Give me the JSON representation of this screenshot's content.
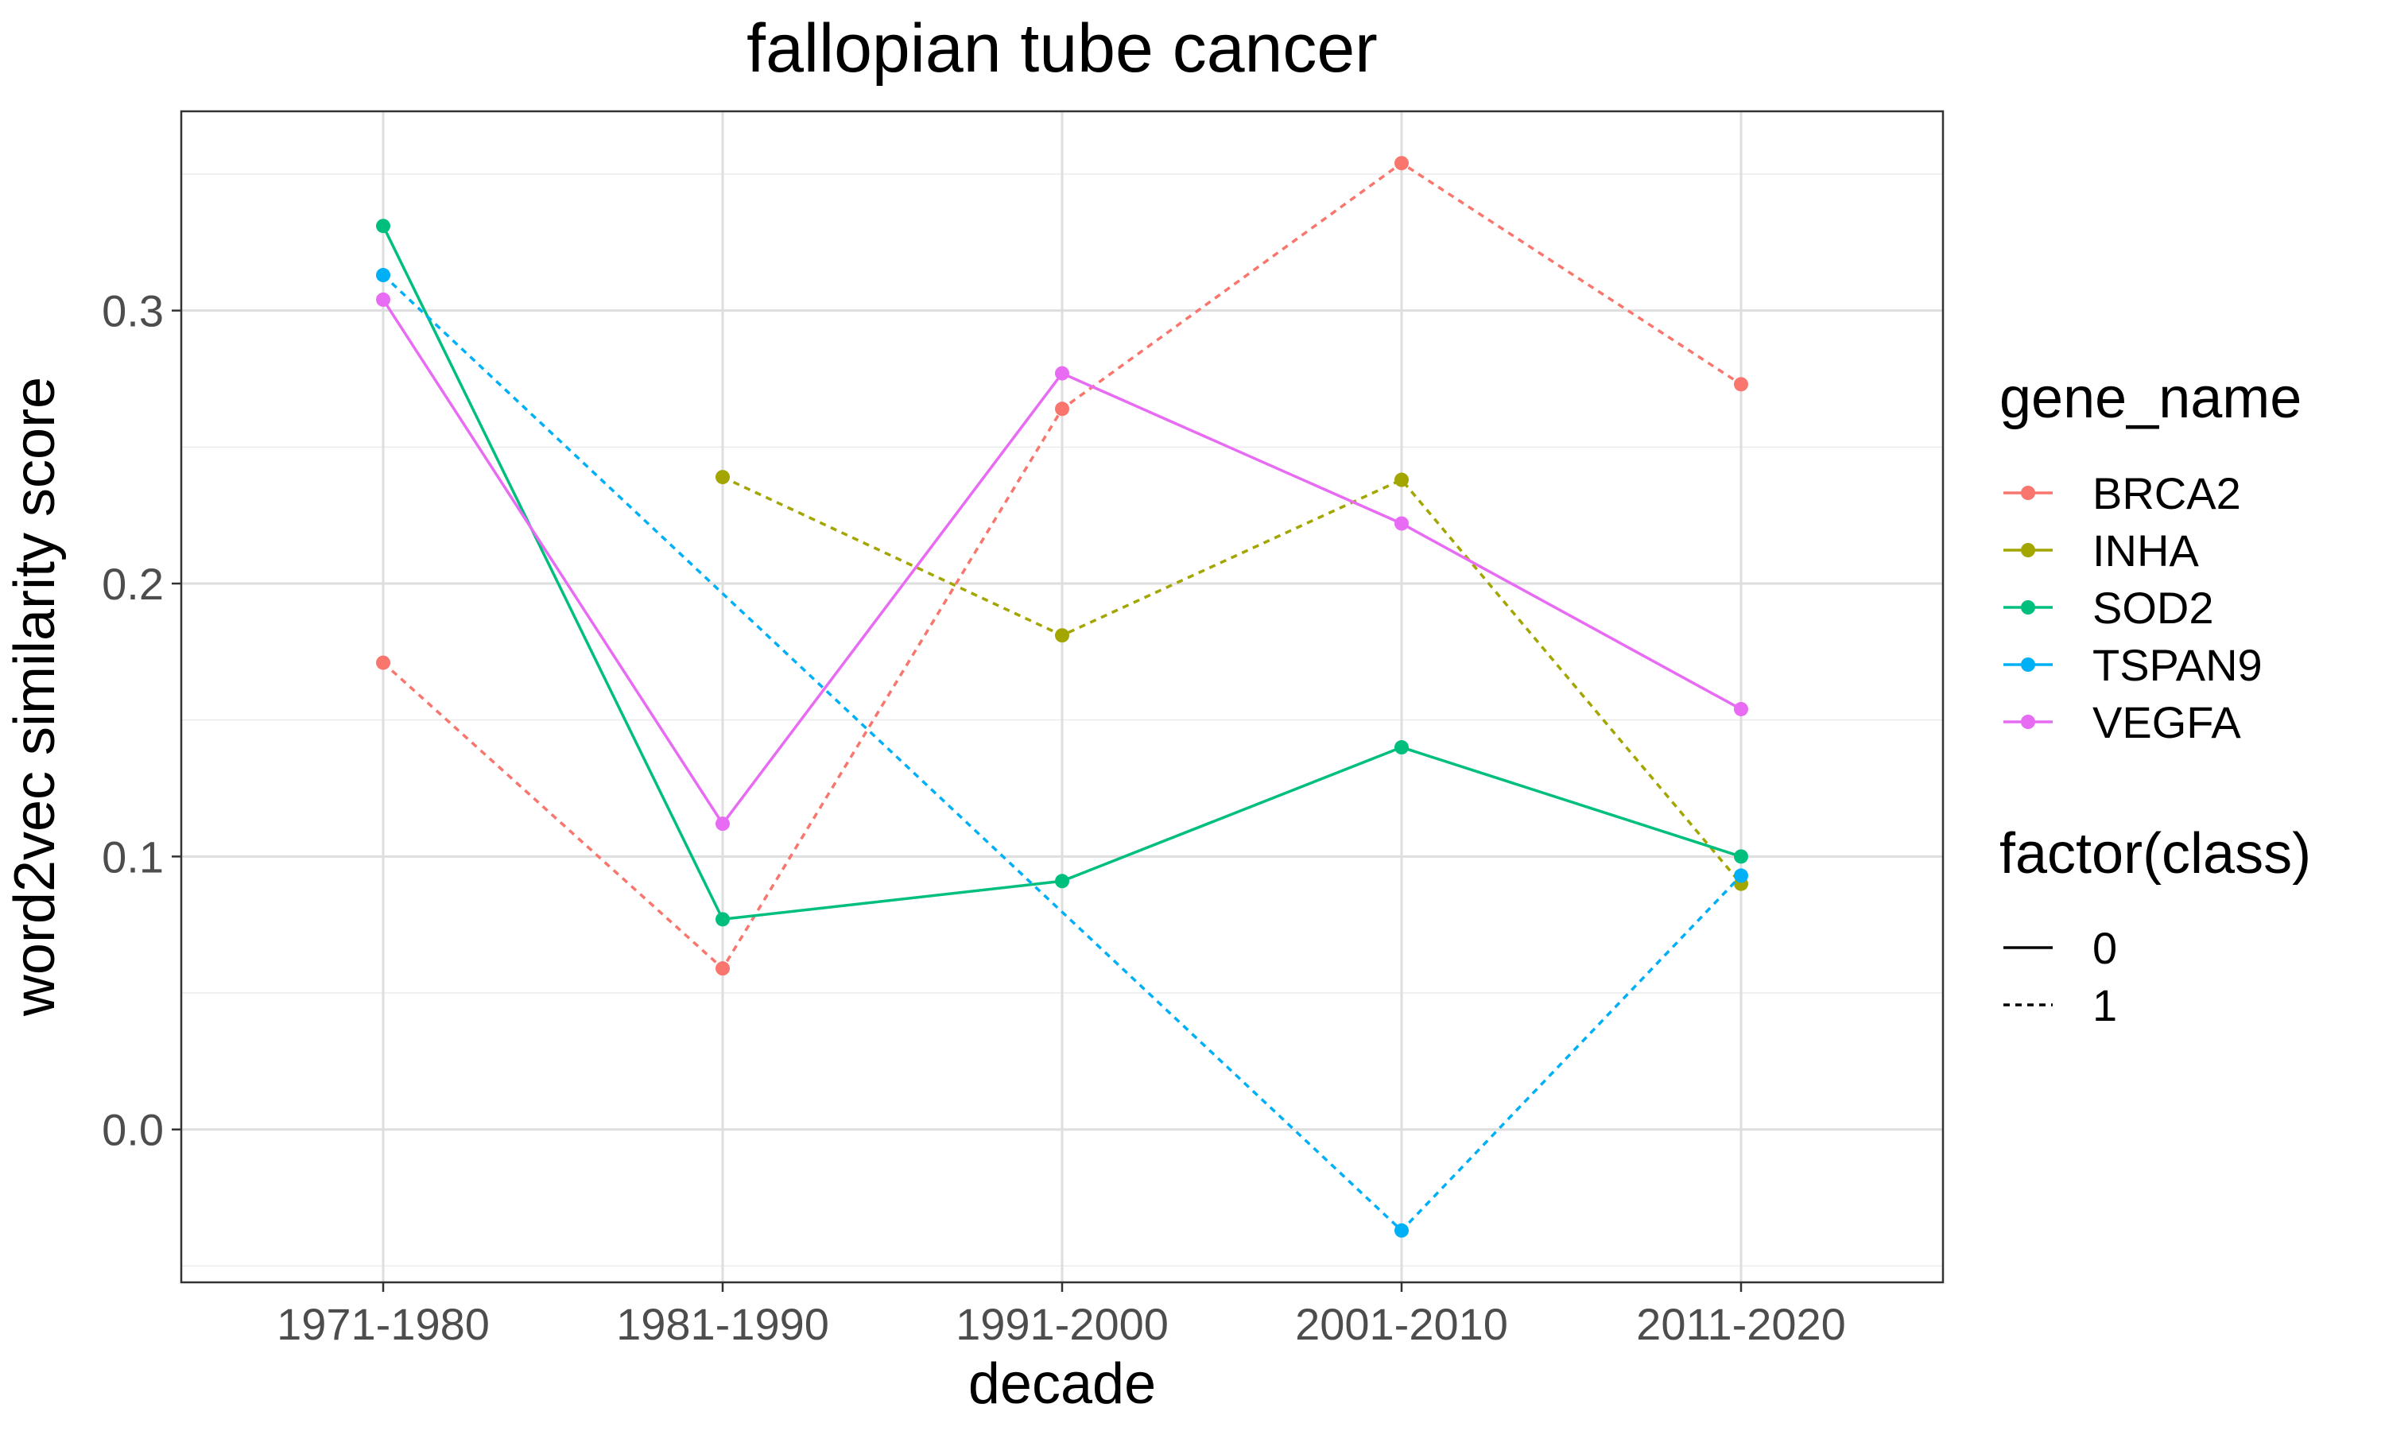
{
  "chart_data": {
    "type": "line",
    "title": "fallopian tube cancer",
    "xlabel": "decade",
    "ylabel": "word2vec similarity score",
    "categories": [
      "1971-1980",
      "1981-1990",
      "1991-2000",
      "2001-2010",
      "2011-2020"
    ],
    "ylim": [
      -0.056,
      0.373
    ],
    "yticks": [
      0.0,
      0.1,
      0.2,
      0.3
    ],
    "ytick_labels": [
      "0.0",
      "0.1",
      "0.2",
      "0.3"
    ],
    "grid": true,
    "legend_position": "right",
    "color_legend_title": "gene_name",
    "linetype_legend_title": "factor(class)",
    "series": [
      {
        "name": "BRCA2",
        "color": "#F8766D",
        "class": "1",
        "values": [
          0.171,
          0.059,
          0.264,
          0.354,
          0.273
        ]
      },
      {
        "name": "INHA",
        "color": "#A3A500",
        "class": "1",
        "values": [
          null,
          0.239,
          0.181,
          0.238,
          0.09
        ]
      },
      {
        "name": "SOD2",
        "color": "#00BF7D",
        "class": "0",
        "values": [
          0.331,
          0.077,
          0.091,
          0.14,
          0.1
        ]
      },
      {
        "name": "TSPAN9",
        "color": "#00B0F6",
        "class": "1",
        "values": [
          0.313,
          null,
          null,
          -0.037,
          0.093
        ]
      },
      {
        "name": "VEGFA",
        "color": "#E76BF3",
        "class": "0",
        "values": [
          0.304,
          0.112,
          0.277,
          0.222,
          0.154
        ]
      }
    ],
    "linetype_legend": [
      {
        "label": "0",
        "style": "solid"
      },
      {
        "label": "1",
        "style": "dashed"
      }
    ]
  }
}
